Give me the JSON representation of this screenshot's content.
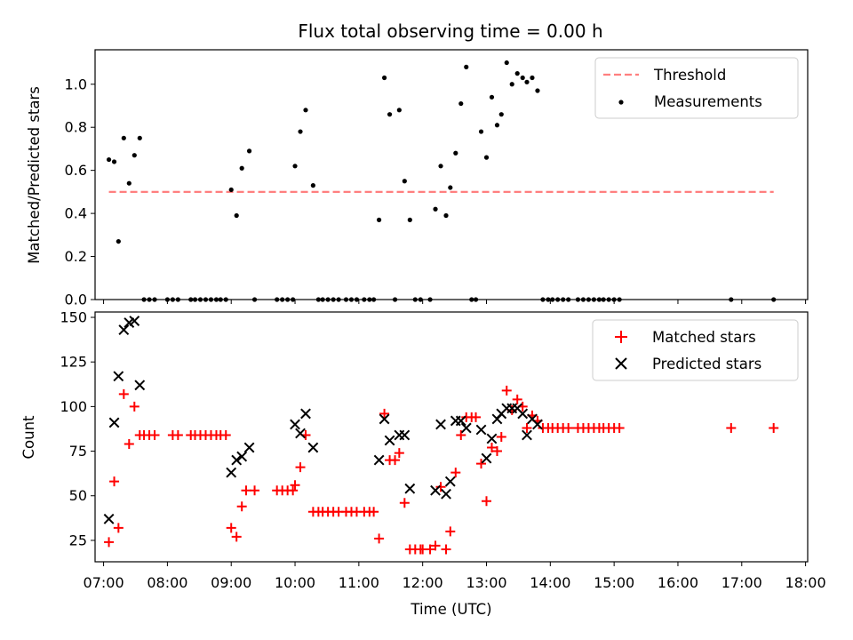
{
  "chart_data": [
    {
      "type": "scatter",
      "title": "Flux total observing time = 0.00 h",
      "xlabel": "",
      "ylabel": "Matched/Predicted stars",
      "xlim": [
        "06:52",
        "18:02"
      ],
      "ylim": [
        0,
        1.16
      ],
      "yticks": [
        0.0,
        0.2,
        0.4,
        0.6,
        0.8,
        1.0
      ],
      "yticklabels": [
        "0.0",
        "0.2",
        "0.4",
        "0.6",
        "0.8",
        "1.0"
      ],
      "grid": false,
      "legend_position": "top-right",
      "legend": [
        "Threshold",
        "Measurements"
      ],
      "colors": {
        "threshold": "#ff7f7f",
        "measurements": "#000000"
      },
      "threshold": {
        "name": "Threshold",
        "value": 0.5,
        "x_range": [
          "07:05",
          "17:30"
        ]
      },
      "series": [
        {
          "name": "Measurements",
          "marker": "dot",
          "points": [
            [
              "07:05",
              0.65
            ],
            [
              "07:10",
              0.64
            ],
            [
              "07:14",
              0.27
            ],
            [
              "07:19",
              0.75
            ],
            [
              "07:24",
              0.54
            ],
            [
              "07:29",
              0.67
            ],
            [
              "07:34",
              0.75
            ],
            [
              "07:38",
              0.0
            ],
            [
              "07:43",
              0.0
            ],
            [
              "07:48",
              0.0
            ],
            [
              "08:00",
              0.0
            ],
            [
              "08:05",
              0.0
            ],
            [
              "08:10",
              0.0
            ],
            [
              "08:22",
              0.0
            ],
            [
              "08:26",
              0.0
            ],
            [
              "08:31",
              0.0
            ],
            [
              "08:36",
              0.0
            ],
            [
              "08:41",
              0.0
            ],
            [
              "08:46",
              0.0
            ],
            [
              "08:50",
              0.0
            ],
            [
              "08:55",
              0.0
            ],
            [
              "09:00",
              0.51
            ],
            [
              "09:05",
              0.39
            ],
            [
              "09:10",
              0.61
            ],
            [
              "09:17",
              0.69
            ],
            [
              "09:22",
              0.0
            ],
            [
              "09:43",
              0.0
            ],
            [
              "09:48",
              0.0
            ],
            [
              "09:53",
              0.0
            ],
            [
              "09:58",
              0.0
            ],
            [
              "10:00",
              0.62
            ],
            [
              "10:05",
              0.78
            ],
            [
              "10:10",
              0.88
            ],
            [
              "10:17",
              0.53
            ],
            [
              "10:22",
              0.0
            ],
            [
              "10:26",
              0.0
            ],
            [
              "10:31",
              0.0
            ],
            [
              "10:36",
              0.0
            ],
            [
              "10:41",
              0.0
            ],
            [
              "10:48",
              0.0
            ],
            [
              "10:53",
              0.0
            ],
            [
              "10:58",
              0.0
            ],
            [
              "11:05",
              0.0
            ],
            [
              "11:10",
              0.0
            ],
            [
              "11:14",
              0.0
            ],
            [
              "11:19",
              0.37
            ],
            [
              "11:24",
              1.03
            ],
            [
              "11:29",
              0.86
            ],
            [
              "11:34",
              0.0
            ],
            [
              "11:38",
              0.88
            ],
            [
              "11:43",
              0.55
            ],
            [
              "11:48",
              0.37
            ],
            [
              "11:53",
              0.0
            ],
            [
              "11:58",
              0.0
            ],
            [
              "12:07",
              0.0
            ],
            [
              "12:12",
              0.42
            ],
            [
              "12:17",
              0.62
            ],
            [
              "12:22",
              0.39
            ],
            [
              "12:26",
              0.52
            ],
            [
              "12:31",
              0.68
            ],
            [
              "12:36",
              0.91
            ],
            [
              "12:41",
              1.08
            ],
            [
              "12:46",
              0.0
            ],
            [
              "12:50",
              0.0
            ],
            [
              "12:55",
              0.78
            ],
            [
              "13:00",
              0.66
            ],
            [
              "13:05",
              0.94
            ],
            [
              "13:10",
              0.81
            ],
            [
              "13:14",
              0.86
            ],
            [
              "13:19",
              1.1
            ],
            [
              "13:24",
              1.0
            ],
            [
              "13:29",
              1.05
            ],
            [
              "13:34",
              1.03
            ],
            [
              "13:38",
              1.01
            ],
            [
              "13:43",
              1.03
            ],
            [
              "13:48",
              0.97
            ],
            [
              "13:53",
              0.0
            ],
            [
              "13:58",
              0.0
            ],
            [
              "14:02",
              0.0
            ],
            [
              "14:07",
              0.0
            ],
            [
              "14:12",
              0.0
            ],
            [
              "14:17",
              0.0
            ],
            [
              "14:26",
              0.0
            ],
            [
              "14:31",
              0.0
            ],
            [
              "14:36",
              0.0
            ],
            [
              "14:41",
              0.0
            ],
            [
              "14:46",
              0.0
            ],
            [
              "14:50",
              0.0
            ],
            [
              "14:55",
              0.0
            ],
            [
              "15:00",
              0.0
            ],
            [
              "15:05",
              0.0
            ],
            [
              "16:50",
              0.0
            ],
            [
              "17:30",
              0.0
            ]
          ]
        }
      ]
    },
    {
      "type": "scatter",
      "title": "",
      "xlabel": "Time (UTC)",
      "ylabel": "Count",
      "xlim": [
        "06:52",
        "18:02"
      ],
      "ylim": [
        13,
        153
      ],
      "xticks": [
        "07:00",
        "08:00",
        "09:00",
        "10:00",
        "11:00",
        "12:00",
        "13:00",
        "14:00",
        "15:00",
        "16:00",
        "17:00",
        "18:00"
      ],
      "yticks": [
        25,
        50,
        75,
        100,
        125,
        150
      ],
      "yticklabels": [
        "25",
        "50",
        "75",
        "100",
        "125",
        "150"
      ],
      "grid": false,
      "legend_position": "top-right",
      "legend": [
        "Matched stars",
        "Predicted stars"
      ],
      "colors": {
        "matched": "#ff0000",
        "predicted": "#000000"
      },
      "series": [
        {
          "name": "Matched stars",
          "marker": "plus",
          "points": [
            [
              "07:05",
              24
            ],
            [
              "07:10",
              58
            ],
            [
              "07:14",
              32
            ],
            [
              "07:19",
              107
            ],
            [
              "07:24",
              79
            ],
            [
              "07:29",
              100
            ],
            [
              "07:34",
              84
            ],
            [
              "07:38",
              84
            ],
            [
              "07:43",
              84
            ],
            [
              "07:48",
              84
            ],
            [
              "08:05",
              84
            ],
            [
              "08:10",
              84
            ],
            [
              "08:22",
              84
            ],
            [
              "08:26",
              84
            ],
            [
              "08:31",
              84
            ],
            [
              "08:36",
              84
            ],
            [
              "08:41",
              84
            ],
            [
              "08:46",
              84
            ],
            [
              "08:50",
              84
            ],
            [
              "08:55",
              84
            ],
            [
              "09:00",
              32
            ],
            [
              "09:05",
              27
            ],
            [
              "09:10",
              44
            ],
            [
              "09:14",
              53
            ],
            [
              "09:22",
              53
            ],
            [
              "09:43",
              53
            ],
            [
              "09:48",
              53
            ],
            [
              "09:53",
              53
            ],
            [
              "09:58",
              53
            ],
            [
              "10:00",
              56
            ],
            [
              "10:05",
              66
            ],
            [
              "10:10",
              84
            ],
            [
              "10:17",
              41
            ],
            [
              "10:22",
              41
            ],
            [
              "10:26",
              41
            ],
            [
              "10:31",
              41
            ],
            [
              "10:36",
              41
            ],
            [
              "10:41",
              41
            ],
            [
              "10:48",
              41
            ],
            [
              "10:53",
              41
            ],
            [
              "10:58",
              41
            ],
            [
              "11:05",
              41
            ],
            [
              "11:10",
              41
            ],
            [
              "11:14",
              41
            ],
            [
              "11:19",
              26
            ],
            [
              "11:24",
              96
            ],
            [
              "11:29",
              70
            ],
            [
              "11:34",
              70
            ],
            [
              "11:38",
              74
            ],
            [
              "11:43",
              46
            ],
            [
              "11:48",
              20
            ],
            [
              "11:53",
              20
            ],
            [
              "11:58",
              20
            ],
            [
              "12:00",
              20
            ],
            [
              "12:07",
              20
            ],
            [
              "12:12",
              22
            ],
            [
              "12:17",
              55
            ],
            [
              "12:22",
              20
            ],
            [
              "12:26",
              30
            ],
            [
              "12:31",
              63
            ],
            [
              "12:36",
              84
            ],
            [
              "12:41",
              94
            ],
            [
              "12:46",
              94
            ],
            [
              "12:50",
              94
            ],
            [
              "12:55",
              68
            ],
            [
              "13:00",
              47
            ],
            [
              "13:05",
              77
            ],
            [
              "13:10",
              75
            ],
            [
              "13:14",
              83
            ],
            [
              "13:19",
              109
            ],
            [
              "13:24",
              98
            ],
            [
              "13:29",
              104
            ],
            [
              "13:34",
              100
            ],
            [
              "13:38",
              88
            ],
            [
              "13:43",
              95
            ],
            [
              "13:48",
              92
            ],
            [
              "13:53",
              88
            ],
            [
              "13:58",
              88
            ],
            [
              "14:02",
              88
            ],
            [
              "14:07",
              88
            ],
            [
              "14:12",
              88
            ],
            [
              "14:17",
              88
            ],
            [
              "14:26",
              88
            ],
            [
              "14:31",
              88
            ],
            [
              "14:36",
              88
            ],
            [
              "14:41",
              88
            ],
            [
              "14:46",
              88
            ],
            [
              "14:50",
              88
            ],
            [
              "14:55",
              88
            ],
            [
              "15:00",
              88
            ],
            [
              "15:05",
              88
            ],
            [
              "16:50",
              88
            ],
            [
              "17:30",
              88
            ]
          ]
        },
        {
          "name": "Predicted stars",
          "marker": "x",
          "points": [
            [
              "07:05",
              37
            ],
            [
              "07:10",
              91
            ],
            [
              "07:14",
              117
            ],
            [
              "07:19",
              143
            ],
            [
              "07:24",
              147
            ],
            [
              "07:29",
              148
            ],
            [
              "07:34",
              112
            ],
            [
              "09:00",
              63
            ],
            [
              "09:05",
              70
            ],
            [
              "09:10",
              72
            ],
            [
              "09:17",
              77
            ],
            [
              "10:00",
              90
            ],
            [
              "10:05",
              85
            ],
            [
              "10:10",
              96
            ],
            [
              "10:17",
              77
            ],
            [
              "11:19",
              70
            ],
            [
              "11:24",
              93
            ],
            [
              "11:29",
              81
            ],
            [
              "11:38",
              84
            ],
            [
              "11:43",
              84
            ],
            [
              "11:48",
              54
            ],
            [
              "12:12",
              53
            ],
            [
              "12:17",
              90
            ],
            [
              "12:22",
              51
            ],
            [
              "12:26",
              58
            ],
            [
              "12:31",
              92
            ],
            [
              "12:36",
              92
            ],
            [
              "12:41",
              88
            ],
            [
              "12:55",
              87
            ],
            [
              "13:00",
              71
            ],
            [
              "13:05",
              82
            ],
            [
              "13:10",
              93
            ],
            [
              "13:14",
              96
            ],
            [
              "13:19",
              99
            ],
            [
              "13:24",
              99
            ],
            [
              "13:29",
              99
            ],
            [
              "13:34",
              96
            ],
            [
              "13:38",
              84
            ],
            [
              "13:43",
              93
            ],
            [
              "13:48",
              90
            ]
          ]
        }
      ]
    }
  ]
}
